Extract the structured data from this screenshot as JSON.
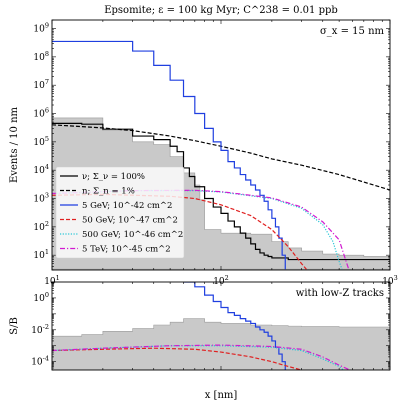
{
  "chart_data": [
    {
      "type": "line",
      "title": "Epsomite; ε = 100 kg Myr; C^238 = 0.01 ppb",
      "annotation": "σ_x = 15 nm",
      "xlabel": "x [nm]",
      "ylabel": "Events / 10 nm",
      "xscale": "log",
      "yscale": "log",
      "xlim": [
        10,
        1000
      ],
      "ylim": [
        3,
        2000000000
      ],
      "xticks": [
        {
          "v": 10,
          "b": "10",
          "e": "1"
        },
        {
          "v": 100,
          "b": "10",
          "e": "2"
        },
        {
          "v": 1000,
          "b": "10",
          "e": "3"
        }
      ],
      "yticks": [
        {
          "v": 10,
          "b": "10",
          "e": "1"
        },
        {
          "v": 100,
          "b": "10",
          "e": "2"
        },
        {
          "v": 1000,
          "b": "10",
          "e": "3"
        },
        {
          "v": 10000,
          "b": "10",
          "e": "4"
        },
        {
          "v": 100000,
          "b": "10",
          "e": "5"
        },
        {
          "v": 1000000,
          "b": "10",
          "e": "6"
        },
        {
          "v": 10000000,
          "b": "10",
          "e": "7"
        },
        {
          "v": 100000000,
          "b": "10",
          "e": "8"
        },
        {
          "v": 1000000000,
          "b": "10",
          "e": "9"
        }
      ],
      "legend_position": "center-left",
      "background_band": {
        "x": [
          10,
          15,
          20,
          30,
          40,
          50,
          60,
          70,
          75,
          80,
          100,
          150,
          200,
          250,
          300,
          400,
          500,
          700,
          1000
        ],
        "low": [
          3.2,
          3.2,
          3.2,
          3.2,
          3.2,
          3.2,
          3.2,
          3.2,
          3.2,
          3.2,
          3.2,
          3.2,
          3.2,
          3.2,
          3.2,
          3.2,
          3.2,
          3.2,
          3.2
        ],
        "high": [
          700000,
          700000,
          250000,
          100000,
          80000,
          30000,
          8000,
          3000,
          900,
          80,
          60,
          55,
          30,
          18,
          14,
          11,
          10,
          9,
          9
        ]
      },
      "series": [
        {
          "name": "ν; Σ_ν = 100%",
          "color": "#000000",
          "dash": "solid",
          "step": true,
          "x": [
            10,
            15,
            20,
            30,
            40,
            50,
            55,
            60,
            65,
            70,
            80,
            90,
            100,
            110,
            120,
            130,
            140,
            150,
            160,
            170,
            180,
            190,
            200,
            250,
            1000
          ],
          "y": [
            450000,
            420000,
            280000,
            160000,
            120000,
            70000,
            45000,
            12000,
            6000,
            2600,
            1000,
            500,
            300,
            160,
            100,
            60,
            40,
            25,
            16,
            12,
            10,
            9,
            8,
            7,
            5
          ]
        },
        {
          "name": "n; Σ_n = 1%",
          "color": "#000000",
          "dash": "dashed",
          "step": false,
          "x": [
            10,
            20,
            30,
            50,
            70,
            100,
            150,
            200,
            300,
            500,
            1000
          ],
          "y": [
            400000,
            310000,
            250000,
            160000,
            110000,
            70000,
            40000,
            25000,
            15000,
            7000,
            2000
          ]
        },
        {
          "name": "5 GeV; 10^-42 cm^2",
          "color": "#1f3fe0",
          "dash": "solid",
          "step": true,
          "x": [
            10,
            20,
            30,
            40,
            50,
            60,
            70,
            80,
            90,
            100,
            110,
            120,
            130,
            140,
            150,
            160,
            170,
            180,
            190,
            200,
            210,
            220,
            230,
            240
          ],
          "y": [
            350000000,
            350000000,
            160000000,
            50000000,
            15000000,
            4000000,
            1000000,
            300000,
            100000,
            50000,
            20000,
            12000,
            7000,
            4500,
            3000,
            2000,
            1300,
            800,
            400,
            200,
            100,
            40,
            10,
            3.2
          ]
        },
        {
          "name": "50 GeV; 10^-47 cm^2",
          "color": "#e02020",
          "dash": "dashed",
          "step": false,
          "x": [
            10,
            20,
            50,
            70,
            100,
            150,
            200,
            250,
            300,
            320
          ],
          "y": [
            1300,
            1400,
            1200,
            1000,
            600,
            250,
            80,
            20,
            5,
            3.2
          ]
        },
        {
          "name": "500 GeV; 10^-46 cm^2",
          "color": "#27c6d6",
          "dash": "dotted",
          "step": false,
          "x": [
            10,
            30,
            70,
            100,
            200,
            300,
            400,
            460,
            500,
            520
          ],
          "y": [
            1500,
            1900,
            1900,
            1700,
            1000,
            450,
            120,
            30,
            6,
            3.2
          ]
        },
        {
          "name": "5 TeV; 10^-45 cm^2",
          "color": "#d11ad1",
          "dash": "dashdot",
          "step": false,
          "x": [
            10,
            30,
            70,
            100,
            200,
            300,
            400,
            500,
            550,
            570
          ],
          "y": [
            1500,
            1900,
            1950,
            1750,
            1050,
            500,
            150,
            35,
            6,
            3.2
          ]
        }
      ]
    },
    {
      "type": "line",
      "annotation": "with low-Z tracks",
      "xlabel": "x [nm]",
      "ylabel": "S/B",
      "xscale": "log",
      "yscale": "log",
      "xlim": [
        10,
        1000
      ],
      "ylim": [
        3e-05,
        10
      ],
      "yticks": [
        {
          "v": 1,
          "b": "10",
          "e": "0"
        },
        {
          "v": 0.01,
          "b": "10",
          "e": "-2"
        },
        {
          "v": 0.0001,
          "b": "10",
          "e": "-4"
        }
      ],
      "background_band": {
        "x": [
          10,
          15,
          20,
          30,
          40,
          50,
          60,
          70,
          80,
          100,
          150,
          200,
          250,
          300,
          500,
          1000
        ],
        "low": [
          3e-05,
          3e-05,
          3e-05,
          3e-05,
          3e-05,
          3e-05,
          3e-05,
          3e-05,
          3e-05,
          3e-05,
          3e-05,
          3e-05,
          3e-05,
          3e-05,
          3e-05,
          3e-05
        ],
        "high": [
          0.004,
          0.005,
          0.008,
          0.012,
          0.02,
          0.03,
          0.05,
          0.05,
          0.03,
          0.025,
          0.02,
          0.018,
          0.017,
          0.016,
          0.015,
          0.015
        ]
      },
      "series": [
        {
          "name": "5 GeV; 10^-42 cm^2",
          "color": "#1f3fe0",
          "dash": "solid",
          "step": true,
          "x": [
            60,
            70,
            80,
            90,
            100,
            110,
            120,
            130,
            140,
            150,
            160,
            170,
            180,
            190,
            200,
            210,
            220,
            230,
            240
          ],
          "y": [
            10,
            5,
            1.5,
            0.6,
            0.25,
            0.12,
            0.08,
            0.05,
            0.035,
            0.025,
            0.015,
            0.01,
            0.007,
            0.004,
            0.002,
            0.0008,
            0.0003,
            0.0001,
            3e-05
          ]
        },
        {
          "name": "50 GeV; 10^-47 cm^2",
          "color": "#e02020",
          "dash": "dashed",
          "step": false,
          "x": [
            10,
            20,
            40,
            70,
            100,
            150,
            200,
            250,
            300
          ],
          "y": [
            0.0005,
            0.0006,
            0.0007,
            0.0006,
            0.0004,
            0.0002,
            0.0001,
            5e-05,
            3e-05
          ]
        },
        {
          "name": "500 GeV; 10^-46 cm^2",
          "color": "#27c6d6",
          "dash": "dotted",
          "step": false,
          "x": [
            10,
            20,
            50,
            100,
            200,
            300,
            400,
            500,
            530
          ],
          "y": [
            0.0005,
            0.0007,
            0.001,
            0.001,
            0.0008,
            0.0005,
            0.00015,
            5e-05,
            3e-05
          ]
        },
        {
          "name": "5 TeV; 10^-45 cm^2",
          "color": "#d11ad1",
          "dash": "dashdot",
          "step": false,
          "x": [
            10,
            20,
            50,
            100,
            200,
            300,
            400,
            500,
            580
          ],
          "y": [
            0.0005,
            0.0007,
            0.001,
            0.0011,
            0.0009,
            0.0006,
            0.0002,
            6e-05,
            3e-05
          ]
        }
      ]
    }
  ]
}
